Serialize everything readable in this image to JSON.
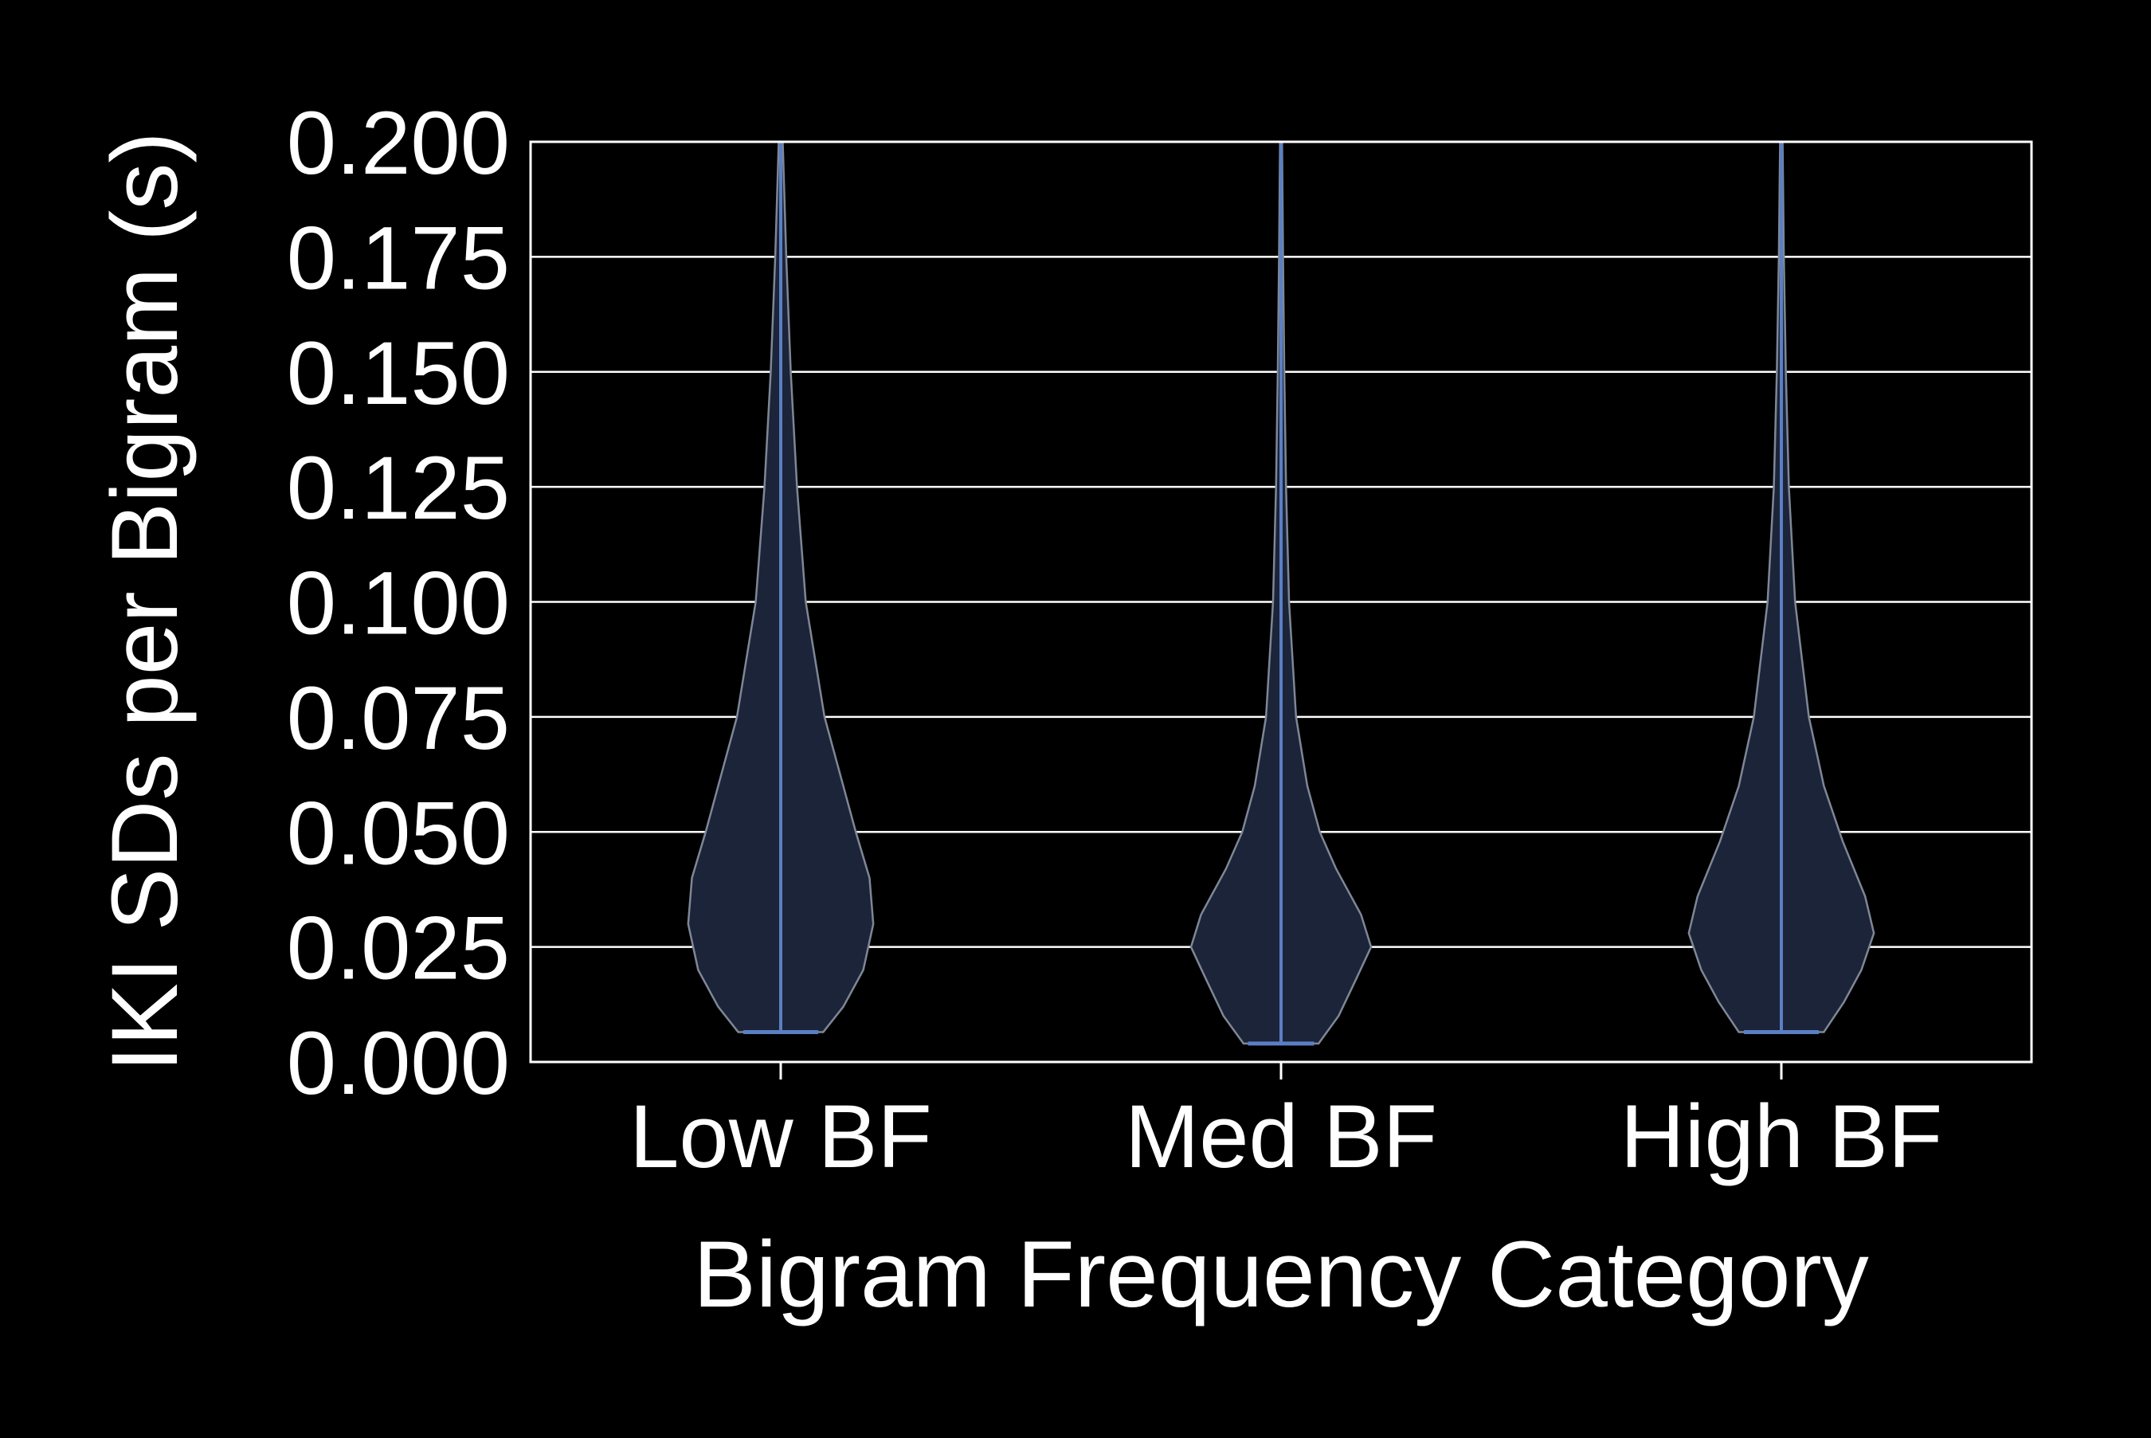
{
  "chart_data": {
    "type": "violin",
    "title": "",
    "xlabel": "Bigram Frequency Category",
    "ylabel": "IKI SDs per Bigram (s)",
    "categories": [
      "Low BF",
      "Med BF",
      "High BF"
    ],
    "ylim": [
      0,
      0.2
    ],
    "yticks": [
      "0.000",
      "0.025",
      "0.050",
      "0.075",
      "0.100",
      "0.125",
      "0.150",
      "0.175",
      "0.200"
    ],
    "grid": "horizontal",
    "colors": {
      "background": "#000000",
      "text": "#ffffff",
      "violin_fill": "#1b2438",
      "violin_edge": "#7f8796",
      "median_line": "#5b7fc4",
      "grid": "#ffffff"
    },
    "violins": [
      {
        "category": "Low BF",
        "min": 0.0065,
        "max": 0.2,
        "profile": [
          [
            0.0065,
            0.17
          ],
          [
            0.012,
            0.25
          ],
          [
            0.02,
            0.33
          ],
          [
            0.03,
            0.37
          ],
          [
            0.04,
            0.355
          ],
          [
            0.05,
            0.3
          ],
          [
            0.062,
            0.24
          ],
          [
            0.075,
            0.175
          ],
          [
            0.1,
            0.1
          ],
          [
            0.125,
            0.065
          ],
          [
            0.15,
            0.04
          ],
          [
            0.175,
            0.022
          ],
          [
            0.2,
            0.008
          ]
        ]
      },
      {
        "category": "Med BF",
        "min": 0.004,
        "max": 0.2,
        "profile": [
          [
            0.004,
            0.15
          ],
          [
            0.01,
            0.23
          ],
          [
            0.018,
            0.3
          ],
          [
            0.025,
            0.36
          ],
          [
            0.032,
            0.32
          ],
          [
            0.042,
            0.22
          ],
          [
            0.05,
            0.155
          ],
          [
            0.06,
            0.105
          ],
          [
            0.075,
            0.06
          ],
          [
            0.1,
            0.032
          ],
          [
            0.125,
            0.02
          ],
          [
            0.15,
            0.013
          ],
          [
            0.175,
            0.008
          ],
          [
            0.2,
            0.004
          ]
        ]
      },
      {
        "category": "High BF",
        "min": 0.0065,
        "max": 0.2,
        "profile": [
          [
            0.0065,
            0.17
          ],
          [
            0.013,
            0.25
          ],
          [
            0.02,
            0.32
          ],
          [
            0.028,
            0.37
          ],
          [
            0.036,
            0.335
          ],
          [
            0.048,
            0.245
          ],
          [
            0.06,
            0.17
          ],
          [
            0.075,
            0.11
          ],
          [
            0.1,
            0.055
          ],
          [
            0.125,
            0.03
          ],
          [
            0.15,
            0.018
          ],
          [
            0.175,
            0.01
          ],
          [
            0.2,
            0.005
          ]
        ]
      }
    ]
  }
}
